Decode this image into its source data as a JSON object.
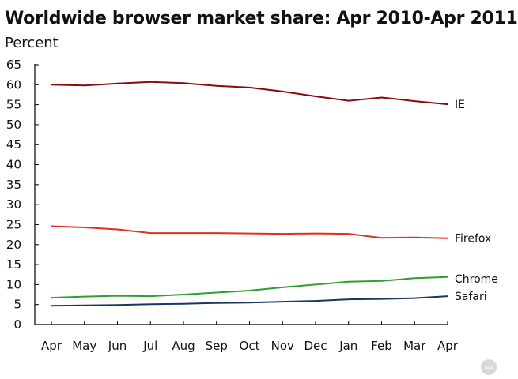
{
  "chart_data": {
    "type": "line",
    "title": "Worldwide browser market share: Apr 2010-Apr 2011",
    "ylabel": "Percent",
    "xlabel": "",
    "ylim": [
      0,
      65
    ],
    "yticks": [
      0,
      5,
      10,
      15,
      20,
      25,
      30,
      35,
      40,
      45,
      50,
      55,
      60,
      65
    ],
    "categories": [
      "Apr",
      "May",
      "Jun",
      "Jul",
      "Aug",
      "Sep",
      "Oct",
      "Nov",
      "Dec",
      "Jan",
      "Feb",
      "Mar",
      "Apr"
    ],
    "grid": false,
    "legend": "labels at line ends (right)",
    "series": [
      {
        "name": "IE",
        "color": "#8b0a0a",
        "values": [
          60.0,
          59.8,
          60.3,
          60.7,
          60.4,
          59.7,
          59.3,
          58.3,
          57.1,
          56.0,
          56.8,
          55.9,
          55.1
        ]
      },
      {
        "name": "Firefox",
        "color": "#e0301e",
        "values": [
          24.6,
          24.3,
          23.8,
          22.9,
          22.9,
          22.9,
          22.8,
          22.7,
          22.8,
          22.7,
          21.7,
          21.8,
          21.6
        ]
      },
      {
        "name": "Chrome",
        "color": "#2ca02c",
        "values": [
          6.7,
          7.0,
          7.2,
          7.1,
          7.5,
          8.0,
          8.5,
          9.3,
          10.0,
          10.7,
          10.9,
          11.6,
          11.9
        ]
      },
      {
        "name": "Safari",
        "color": "#17375e",
        "values": [
          4.7,
          4.8,
          4.9,
          5.1,
          5.2,
          5.4,
          5.5,
          5.7,
          5.9,
          6.3,
          6.4,
          6.6,
          7.1
        ]
      }
    ]
  },
  "badge": "ars"
}
